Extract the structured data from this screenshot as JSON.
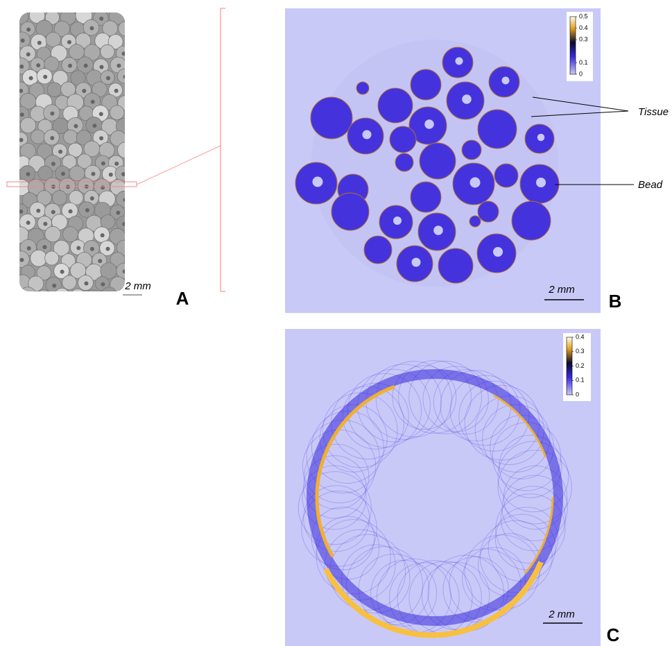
{
  "panels": [
    {
      "label": "A",
      "scale_bar": "2 mm"
    },
    {
      "label": "B",
      "scale_bar": "2 mm",
      "annotations": [
        "Tissue",
        "Bead"
      ],
      "colorbar": {
        "lim": [
          0,
          0.5
        ],
        "ticks": [
          0,
          0.1,
          0.3,
          0.4,
          0.5
        ]
      }
    },
    {
      "label": "C",
      "scale_bar": "2 mm",
      "colorbar": {
        "lim": [
          0,
          0.4
        ],
        "ticks": [
          0,
          0.1,
          0.2,
          0.3,
          0.4
        ]
      }
    }
  ]
}
